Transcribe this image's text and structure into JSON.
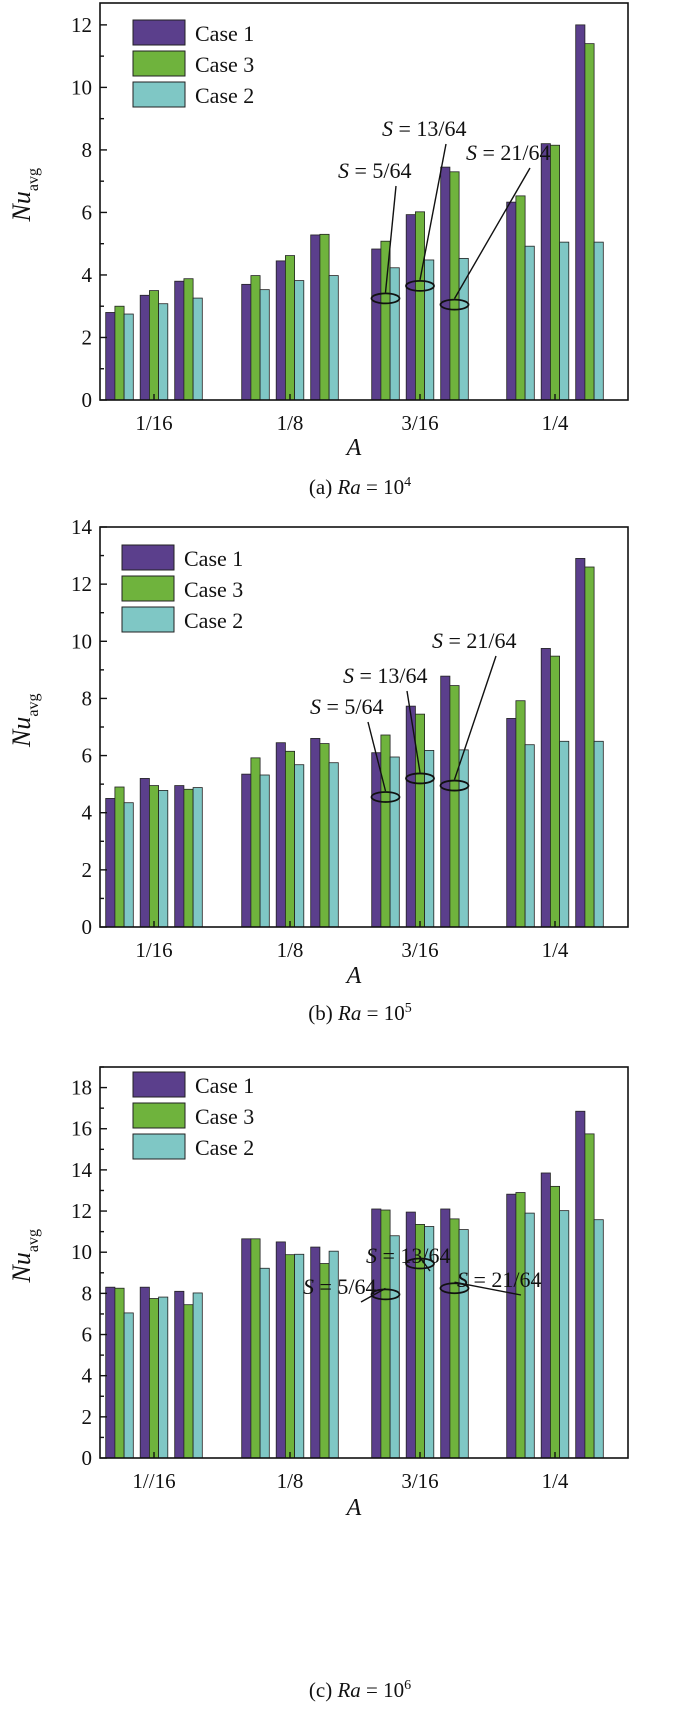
{
  "colors": {
    "case1": "#5b3f8c",
    "case3": "#6fb33d",
    "case2": "#7fc7c5"
  },
  "chart_data": [
    {
      "type": "bar",
      "panel_id": "a",
      "caption_prefix": "(a) ",
      "caption_var": "Ra",
      "caption_eq": " = 10",
      "caption_exp": "4",
      "ylabel_main": "Nu",
      "ylabel_sub": "avg",
      "xlabel": "A",
      "ylim": [
        0,
        12.7
      ],
      "yticks": [
        0,
        2,
        4,
        6,
        8,
        10,
        12
      ],
      "categories": [
        "1/16",
        "1/8",
        "3/16",
        "1/4"
      ],
      "series_names": [
        "Case 1",
        "Case 3",
        "Case 2"
      ],
      "groups": [
        [
          [
            2.8,
            3.0,
            2.75
          ],
          [
            3.35,
            3.5,
            3.08
          ],
          [
            3.8,
            3.88,
            3.26
          ]
        ],
        [
          [
            3.7,
            3.98,
            3.53
          ],
          [
            4.45,
            4.62,
            3.82
          ],
          [
            5.28,
            5.3,
            3.98
          ]
        ],
        [
          [
            4.83,
            5.08,
            4.23
          ],
          [
            5.93,
            6.02,
            4.48
          ],
          [
            7.45,
            7.3,
            4.53
          ]
        ],
        [
          [
            6.33,
            6.53,
            4.92
          ],
          [
            8.2,
            8.15,
            5.05
          ],
          [
            12.0,
            11.4,
            5.05
          ]
        ]
      ],
      "annotations": [
        {
          "label": "S = 5/64",
          "var": "S",
          "rest": " = 5/64"
        },
        {
          "label": "S = 13/64",
          "var": "S",
          "rest": " = 13/64"
        },
        {
          "label": "S = 21/64",
          "var": "S",
          "rest": " = 21/64"
        }
      ],
      "annotation_targets_y": [
        3.25,
        3.65,
        3.05
      ]
    },
    {
      "type": "bar",
      "panel_id": "b",
      "caption_prefix": "(b) ",
      "caption_var": "Ra",
      "caption_eq": " = 10",
      "caption_exp": "5",
      "ylabel_main": "Nu",
      "ylabel_sub": "avg",
      "xlabel": "A",
      "ylim": [
        0,
        14
      ],
      "yticks": [
        0,
        2,
        4,
        6,
        8,
        10,
        12,
        14
      ],
      "categories": [
        "1/16",
        "1/8",
        "3/16",
        "1/4"
      ],
      "series_names": [
        "Case 1",
        "Case 3",
        "Case 2"
      ],
      "groups": [
        [
          [
            4.5,
            4.9,
            4.35
          ],
          [
            5.2,
            4.95,
            4.78
          ],
          [
            4.95,
            4.82,
            4.88
          ]
        ],
        [
          [
            5.35,
            5.92,
            5.32
          ],
          [
            6.45,
            6.15,
            5.68
          ],
          [
            6.6,
            6.42,
            5.75
          ]
        ],
        [
          [
            6.1,
            6.72,
            5.95
          ],
          [
            7.73,
            7.45,
            6.18
          ],
          [
            8.78,
            8.45,
            6.2
          ]
        ],
        [
          [
            7.3,
            7.92,
            6.38
          ],
          [
            9.75,
            9.48,
            6.5
          ],
          [
            12.9,
            12.6,
            6.5
          ]
        ]
      ],
      "annotations": [
        {
          "label": "S = 5/64",
          "var": "S",
          "rest": " = 5/64"
        },
        {
          "label": "S = 13/64",
          "var": "S",
          "rest": " = 13/64"
        },
        {
          "label": "S = 21/64",
          "var": "S",
          "rest": " = 21/64"
        }
      ],
      "annotation_targets_y": [
        4.55,
        5.2,
        4.95
      ]
    },
    {
      "type": "bar",
      "panel_id": "c",
      "caption_prefix": "(c) ",
      "caption_var": "Ra",
      "caption_eq": " = 10",
      "caption_exp": "6",
      "ylabel_main": "Nu",
      "ylabel_sub": "avg",
      "xlabel": "A",
      "ylim": [
        0,
        19
      ],
      "yticks": [
        0,
        2,
        4,
        6,
        8,
        10,
        12,
        14,
        16,
        18
      ],
      "categories": [
        "1//16",
        "1/8",
        "3/16",
        "1/4"
      ],
      "series_names": [
        "Case 1",
        "Case 3",
        "Case 2"
      ],
      "groups": [
        [
          [
            8.3,
            8.25,
            7.05
          ],
          [
            8.3,
            7.75,
            7.82
          ],
          [
            8.1,
            7.45,
            8.02
          ]
        ],
        [
          [
            10.65,
            10.65,
            9.22
          ],
          [
            10.5,
            9.88,
            9.9
          ],
          [
            10.25,
            9.45,
            10.05
          ]
        ],
        [
          [
            12.1,
            12.05,
            10.8
          ],
          [
            11.95,
            11.35,
            11.25
          ],
          [
            12.1,
            11.62,
            11.1
          ]
        ],
        [
          [
            12.82,
            12.9,
            11.9
          ],
          [
            13.85,
            13.2,
            12.02
          ],
          [
            16.85,
            15.75,
            11.58
          ]
        ]
      ],
      "annotations": [
        {
          "label": "S = 5/64",
          "var": "S",
          "rest": " = 5/64"
        },
        {
          "label": "S = 13/64",
          "var": "S",
          "rest": " = 13/64"
        },
        {
          "label": "S = 21/64",
          "var": "S",
          "rest": " = 21/64"
        }
      ],
      "annotation_targets_y": [
        7.95,
        9.45,
        8.25
      ]
    }
  ]
}
